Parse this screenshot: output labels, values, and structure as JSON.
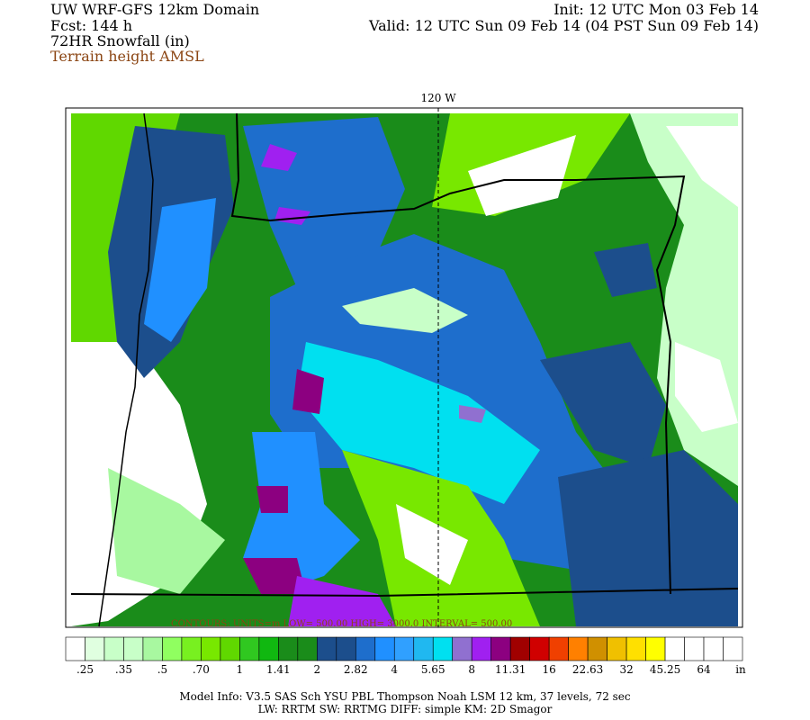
{
  "header": {
    "line1": "UW WRF-GFS 12km Domain",
    "line2": "Fcst:  144 h",
    "line3": "72HR Snowfall (in)",
    "line4": "Terrain height AMSL",
    "init": "Init: 12 UTC Mon 03 Feb 14",
    "valid": "Valid: 12 UTC Sun 09 Feb 14 (04 PST Sun 09 Feb 14)"
  },
  "map": {
    "meridian_label": "120 W",
    "contours_label": "CONTOURS: UNITS=m  LOW=  500.00  HIGH= 3000.0  INTERVAL=  500.00"
  },
  "colorbar": {
    "colors": [
      "#ffffff",
      "#e0ffe0",
      "#c8ffc8",
      "#c8ffc8",
      "#a8f8a0",
      "#90ff60",
      "#78f020",
      "#78e800",
      "#60d800",
      "#30c820",
      "#10b810",
      "#1a8c1a",
      "#1a8c1a",
      "#1c4e8c",
      "#1c4e8c",
      "#1e6ecc",
      "#2090ff",
      "#30a0ff",
      "#20b8f0",
      "#00e0f0",
      "#9070d0",
      "#a020f0",
      "#8c0080",
      "#a00000",
      "#d00000",
      "#f04000",
      "#ff8000",
      "#d09000",
      "#f0c000",
      "#ffe000",
      "#ffff00",
      "#ffffff",
      "#ffffff",
      "#ffffff",
      "#ffffff"
    ],
    "labels": [
      ".25",
      ".35",
      ".5",
      ".70",
      "1",
      "1.41",
      "2",
      "2.82",
      "4",
      "5.65",
      "8",
      "11.31",
      "16",
      "22.63",
      "32",
      "45.25",
      "64"
    ],
    "unit": "in"
  },
  "footer": {
    "line1": "Model Info: V3.5     SAS Sch YSU PBL  Thompson     Noah LSM  12 km,    37 levels,    72 sec",
    "line2": "LW: RRTM SW: RRTMG   DIFF: simple KM: 2D Smagor"
  }
}
